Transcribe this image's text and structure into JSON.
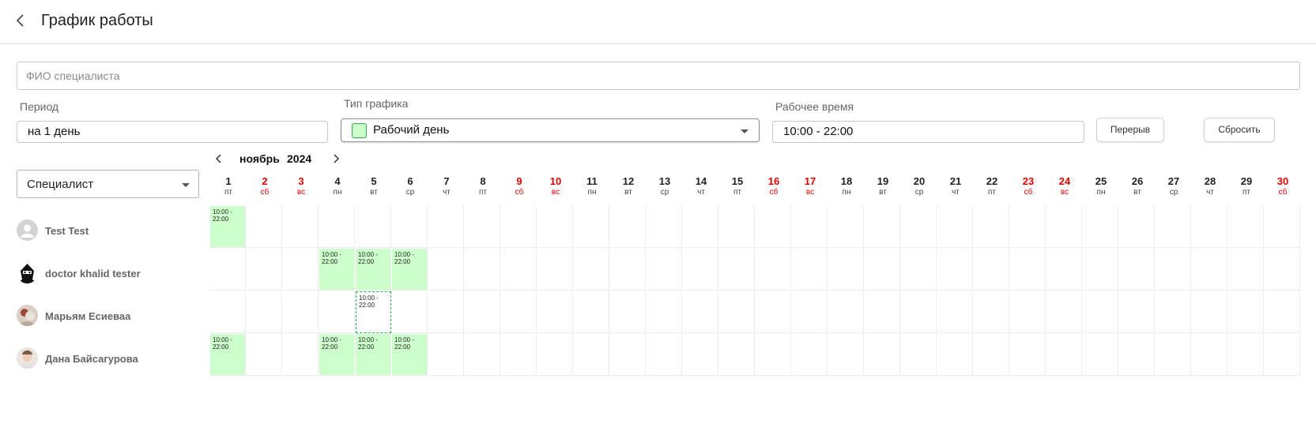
{
  "header": {
    "title": "График работы"
  },
  "filters": {
    "fio_placeholder": "ФИО специалиста",
    "period_label": "Период",
    "period_value": "на 1 день",
    "type_label": "Тип графика",
    "type_value": "Рабочий день",
    "type_color": "#ccffcc",
    "time_label": "Рабочее время",
    "time_value": "10:00 - 22:00",
    "break_button": "Перерыв",
    "reset_button": "Сбросить"
  },
  "calendar": {
    "month": "ноябрь",
    "year": "2024",
    "specialist_select": "Специалист",
    "weekend_color": "#e00000",
    "work_color": "#ccffcc",
    "days": [
      {
        "n": "1",
        "d": "пт",
        "w": false
      },
      {
        "n": "2",
        "d": "сб",
        "w": true
      },
      {
        "n": "3",
        "d": "вс",
        "w": true
      },
      {
        "n": "4",
        "d": "пн",
        "w": false
      },
      {
        "n": "5",
        "d": "вт",
        "w": false
      },
      {
        "n": "6",
        "d": "ср",
        "w": false
      },
      {
        "n": "7",
        "d": "чт",
        "w": false
      },
      {
        "n": "8",
        "d": "пт",
        "w": false
      },
      {
        "n": "9",
        "d": "сб",
        "w": true
      },
      {
        "n": "10",
        "d": "вс",
        "w": true
      },
      {
        "n": "11",
        "d": "пн",
        "w": false
      },
      {
        "n": "12",
        "d": "вт",
        "w": false
      },
      {
        "n": "13",
        "d": "ср",
        "w": false
      },
      {
        "n": "14",
        "d": "чт",
        "w": false
      },
      {
        "n": "15",
        "d": "пт",
        "w": false
      },
      {
        "n": "16",
        "d": "сб",
        "w": true
      },
      {
        "n": "17",
        "d": "вс",
        "w": true
      },
      {
        "n": "18",
        "d": "пн",
        "w": false
      },
      {
        "n": "19",
        "d": "вт",
        "w": false
      },
      {
        "n": "20",
        "d": "ср",
        "w": false
      },
      {
        "n": "21",
        "d": "чт",
        "w": false
      },
      {
        "n": "22",
        "d": "пт",
        "w": false
      },
      {
        "n": "23",
        "d": "сб",
        "w": true
      },
      {
        "n": "24",
        "d": "вс",
        "w": true
      },
      {
        "n": "25",
        "d": "пн",
        "w": false
      },
      {
        "n": "26",
        "d": "вт",
        "w": false
      },
      {
        "n": "27",
        "d": "ср",
        "w": false
      },
      {
        "n": "28",
        "d": "чт",
        "w": false
      },
      {
        "n": "29",
        "d": "пт",
        "w": false
      },
      {
        "n": "30",
        "d": "сб",
        "w": true
      }
    ],
    "specialists": [
      {
        "name": "Test Test",
        "avatar": "default-avatar-icon",
        "shifts": [
          {
            "day": 1,
            "text": "10:00 - 22:00",
            "kind": "work"
          }
        ]
      },
      {
        "name": "doctor khalid tester",
        "avatar": "hacker-avatar-icon",
        "shifts": [
          {
            "day": 4,
            "text": "10:00 - 22:00",
            "kind": "work"
          },
          {
            "day": 5,
            "text": "10:00 - 22:00",
            "kind": "work"
          },
          {
            "day": 6,
            "text": "10:00 - 22:00",
            "kind": "work"
          }
        ]
      },
      {
        "name": "Марьям Есиеваа",
        "avatar": "photo-avatar",
        "shifts": [
          {
            "day": 5,
            "text": "10:00 - 22:00",
            "kind": "draft"
          }
        ]
      },
      {
        "name": "Дана Байсагурова",
        "avatar": "photo-avatar",
        "shifts": [
          {
            "day": 1,
            "text": "10:00 - 22:00",
            "kind": "work"
          },
          {
            "day": 4,
            "text": "10:00 - 22:00",
            "kind": "work"
          },
          {
            "day": 5,
            "text": "10:00 - 22:00",
            "kind": "work"
          },
          {
            "day": 6,
            "text": "10:00 - 22:00",
            "kind": "work"
          }
        ]
      }
    ]
  }
}
